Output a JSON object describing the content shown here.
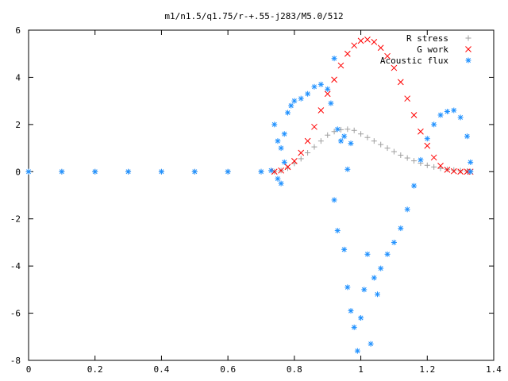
{
  "chart_data": {
    "type": "scatter",
    "title": "m1/n1.5/q1.75/r-+.55-j283/M5.0/512",
    "xlabel": "",
    "ylabel": "",
    "xlim": [
      0,
      1.4
    ],
    "ylim": [
      -8,
      6
    ],
    "xticks": [
      "0",
      "0.2",
      "0.4",
      "0.6",
      "0.8",
      "1",
      "1.2",
      "1.4"
    ],
    "xtick_values": [
      0,
      0.2,
      0.4,
      0.6,
      0.8,
      1.0,
      1.2,
      1.4
    ],
    "yticks": [
      "6",
      "4",
      "2",
      "0",
      "-2",
      "-4",
      "-6",
      "-8"
    ],
    "ytick_values": [
      6,
      4,
      2,
      0,
      -2,
      -4,
      -6,
      -8
    ],
    "grid": false,
    "legend_position": "top-right",
    "series": [
      {
        "name": "R stress",
        "marker": "+",
        "color": "#a0a0a0",
        "points": [
          [
            0.0,
            0.0
          ],
          [
            0.1,
            0.0
          ],
          [
            0.2,
            0.0
          ],
          [
            0.3,
            0.0
          ],
          [
            0.4,
            0.0
          ],
          [
            0.5,
            0.0
          ],
          [
            0.6,
            0.0
          ],
          [
            0.7,
            0.0
          ],
          [
            0.74,
            0.0
          ],
          [
            0.76,
            0.05
          ],
          [
            0.78,
            0.15
          ],
          [
            0.8,
            0.35
          ],
          [
            0.82,
            0.55
          ],
          [
            0.84,
            0.8
          ],
          [
            0.86,
            1.05
          ],
          [
            0.88,
            1.3
          ],
          [
            0.9,
            1.55
          ],
          [
            0.92,
            1.7
          ],
          [
            0.94,
            1.78
          ],
          [
            0.96,
            1.8
          ],
          [
            0.98,
            1.75
          ],
          [
            1.0,
            1.6
          ],
          [
            1.02,
            1.45
          ],
          [
            1.04,
            1.3
          ],
          [
            1.06,
            1.15
          ],
          [
            1.08,
            1.0
          ],
          [
            1.1,
            0.85
          ],
          [
            1.12,
            0.7
          ],
          [
            1.14,
            0.58
          ],
          [
            1.16,
            0.46
          ],
          [
            1.18,
            0.36
          ],
          [
            1.2,
            0.27
          ],
          [
            1.22,
            0.2
          ],
          [
            1.24,
            0.14
          ],
          [
            1.26,
            0.1
          ],
          [
            1.28,
            0.07
          ],
          [
            1.3,
            0.04
          ],
          [
            1.32,
            0.02
          ],
          [
            1.33,
            0.01
          ]
        ]
      },
      {
        "name": "G work",
        "marker": "x",
        "color": "#ff0000",
        "points": [
          [
            0.74,
            0.0
          ],
          [
            0.76,
            0.05
          ],
          [
            0.78,
            0.2
          ],
          [
            0.8,
            0.45
          ],
          [
            0.82,
            0.8
          ],
          [
            0.84,
            1.3
          ],
          [
            0.86,
            1.9
          ],
          [
            0.88,
            2.6
          ],
          [
            0.9,
            3.3
          ],
          [
            0.92,
            3.9
          ],
          [
            0.94,
            4.5
          ],
          [
            0.96,
            5.0
          ],
          [
            0.98,
            5.35
          ],
          [
            1.0,
            5.55
          ],
          [
            1.02,
            5.6
          ],
          [
            1.04,
            5.5
          ],
          [
            1.06,
            5.25
          ],
          [
            1.08,
            4.9
          ],
          [
            1.1,
            4.4
          ],
          [
            1.12,
            3.8
          ],
          [
            1.14,
            3.1
          ],
          [
            1.16,
            2.4
          ],
          [
            1.18,
            1.7
          ],
          [
            1.2,
            1.1
          ],
          [
            1.22,
            0.6
          ],
          [
            1.24,
            0.25
          ],
          [
            1.26,
            0.08
          ],
          [
            1.28,
            0.02
          ],
          [
            1.3,
            0.0
          ],
          [
            1.32,
            0.0
          ],
          [
            1.33,
            0.0
          ]
        ]
      },
      {
        "name": "Acoustic flux",
        "marker": "*",
        "color": "#1e90ff",
        "points": [
          [
            0.0,
            0.0
          ],
          [
            0.1,
            0.0
          ],
          [
            0.2,
            0.0
          ],
          [
            0.3,
            0.0
          ],
          [
            0.4,
            0.0
          ],
          [
            0.5,
            0.0
          ],
          [
            0.6,
            0.0
          ],
          [
            0.7,
            0.0
          ],
          [
            0.73,
            0.05
          ],
          [
            0.74,
            2.0
          ],
          [
            0.75,
            1.3
          ],
          [
            0.75,
            -0.3
          ],
          [
            0.76,
            -0.5
          ],
          [
            0.76,
            1.0
          ],
          [
            0.77,
            0.4
          ],
          [
            0.77,
            1.6
          ],
          [
            0.78,
            2.5
          ],
          [
            0.79,
            2.8
          ],
          [
            0.8,
            3.0
          ],
          [
            0.82,
            3.1
          ],
          [
            0.84,
            3.3
          ],
          [
            0.86,
            3.6
          ],
          [
            0.88,
            3.7
          ],
          [
            0.9,
            3.5
          ],
          [
            0.91,
            2.9
          ],
          [
            0.92,
            4.8
          ],
          [
            0.93,
            1.8
          ],
          [
            0.94,
            1.3
          ],
          [
            0.95,
            1.5
          ],
          [
            0.96,
            0.1
          ],
          [
            0.97,
            1.2
          ],
          [
            0.92,
            -1.2
          ],
          [
            0.93,
            -2.5
          ],
          [
            0.95,
            -3.3
          ],
          [
            0.96,
            -4.9
          ],
          [
            0.97,
            -5.9
          ],
          [
            0.98,
            -6.6
          ],
          [
            0.99,
            -7.6
          ],
          [
            1.0,
            -6.2
          ],
          [
            1.01,
            -5.0
          ],
          [
            1.02,
            -3.5
          ],
          [
            1.03,
            -7.3
          ],
          [
            1.04,
            -4.5
          ],
          [
            1.05,
            -5.2
          ],
          [
            1.06,
            -4.1
          ],
          [
            1.08,
            -3.5
          ],
          [
            1.1,
            -3.0
          ],
          [
            1.12,
            -2.4
          ],
          [
            1.14,
            -1.6
          ],
          [
            1.16,
            -0.6
          ],
          [
            1.18,
            0.5
          ],
          [
            1.2,
            1.4
          ],
          [
            1.22,
            2.0
          ],
          [
            1.24,
            2.4
          ],
          [
            1.26,
            2.55
          ],
          [
            1.28,
            2.6
          ],
          [
            1.3,
            2.3
          ],
          [
            1.32,
            1.5
          ],
          [
            1.33,
            0.4
          ],
          [
            1.33,
            0.0
          ]
        ]
      }
    ]
  }
}
